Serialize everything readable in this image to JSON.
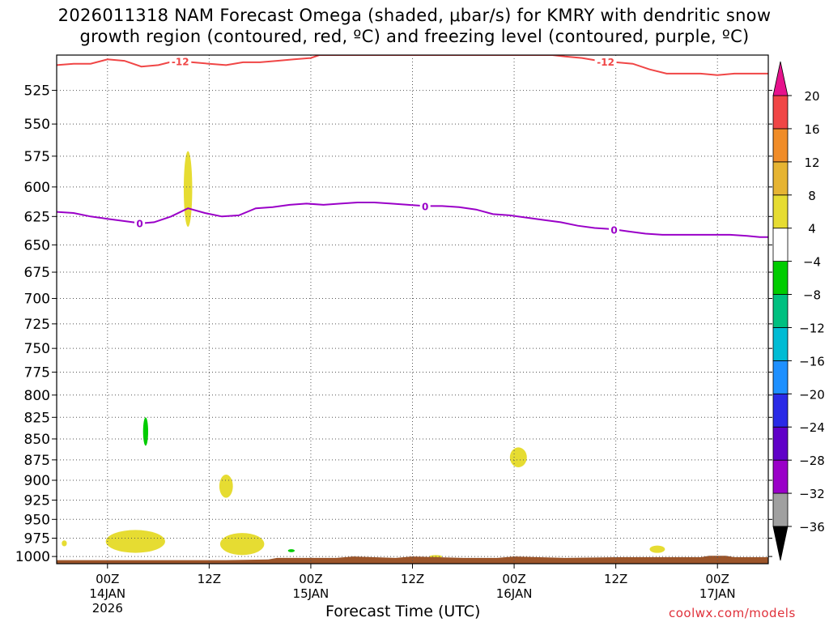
{
  "header": {
    "title_line1": "2026011318 NAM Forecast Omega (shaded, μbar/s) for KMRY with dendritic snow",
    "title_line2": "growth region (contoured, red, ºC) and freezing level (contoured, purple, ºC)"
  },
  "footer": {
    "xlabel": "Forecast Time (UTC)",
    "credit": "coolwx.com/models"
  },
  "chart_data": {
    "type": "heatmap",
    "title": "2026011318 NAM Forecast Omega (shaded, μbar/s) for KMRY with dendritic snow growth region (contoured, red, ºC) and freezing level (contoured, purple, ºC)",
    "xlabel": "Forecast Time (UTC)",
    "ylabel": "",
    "x_unit": "hours since 2026-01-13 18Z",
    "xlim": [
      0,
      84
    ],
    "ylim_hpa": [
      500,
      1010
    ],
    "y_scale": "log-pressure, inverted",
    "grid": true,
    "y_ticks": [
      525,
      550,
      575,
      600,
      625,
      650,
      675,
      700,
      725,
      750,
      775,
      800,
      825,
      850,
      875,
      900,
      925,
      950,
      975,
      1000
    ],
    "x_ticks": [
      {
        "x": 6,
        "lines": [
          "00Z",
          "14JAN",
          "2026"
        ]
      },
      {
        "x": 18,
        "lines": [
          "12Z"
        ]
      },
      {
        "x": 30,
        "lines": [
          "00Z",
          "15JAN"
        ]
      },
      {
        "x": 42,
        "lines": [
          "12Z"
        ]
      },
      {
        "x": 54,
        "lines": [
          "00Z",
          "16JAN"
        ]
      },
      {
        "x": 66,
        "lines": [
          "12Z"
        ]
      },
      {
        "x": 78,
        "lines": [
          "00Z",
          "17JAN"
        ]
      }
    ],
    "colorbar": {
      "levels": [
        -36,
        -32,
        -28,
        -24,
        -20,
        -16,
        -12,
        -8,
        -4,
        4,
        8,
        12,
        16,
        20
      ],
      "colors": [
        "#a0a0a0",
        "#9a00c8",
        "#6000c8",
        "#2a2ae6",
        "#1e90ff",
        "#00bcd4",
        "#00c080",
        "#00cc00",
        "#ffffff",
        "#e6dc32",
        "#e6b432",
        "#f08c28",
        "#f04646"
      ],
      "under_color": "#000000",
      "over_color": "#e6128c"
    },
    "series": [
      {
        "contour_label": "0",
        "color": "#9a00c8",
        "x": [
          0,
          2,
          4,
          6,
          8,
          10,
          11.5,
          13.5,
          15.5,
          17.5,
          19.5,
          21.5,
          23.5,
          25.5,
          27.5,
          29.5,
          31.5,
          33.5,
          35.5,
          37.5,
          39.5,
          41.5,
          43.5,
          45.5,
          47.5,
          49.5,
          51.5,
          53.5,
          55.5,
          57.5,
          59.5,
          61.5,
          63.5,
          65.5,
          67.5,
          69.5,
          71.5,
          73.5,
          75.5,
          77.5,
          79.5,
          81.5,
          83,
          84
        ],
        "y": [
          621,
          622,
          625,
          627,
          629,
          631,
          630,
          625,
          618,
          622,
          625,
          624,
          618,
          617,
          615,
          614,
          615,
          614,
          613,
          613,
          614,
          615,
          616,
          616,
          617,
          619,
          623,
          624,
          626,
          628,
          630,
          633,
          635,
          636,
          638,
          640,
          641,
          641,
          641,
          641,
          641,
          642,
          643,
          643
        ]
      },
      {
        "contour_label": "-12",
        "color": "#f04646",
        "x": [
          0,
          2,
          4,
          6,
          8,
          10,
          12,
          14,
          16,
          18,
          20,
          22,
          24,
          26,
          28,
          30,
          31,
          58.5,
          60,
          62,
          64,
          66,
          68,
          70,
          72,
          74,
          76,
          78,
          80,
          82,
          84
        ],
        "y": [
          507,
          506,
          506,
          503,
          504,
          508,
          507,
          504,
          505,
          506,
          507,
          505,
          505,
          504,
          503,
          502,
          500,
          500,
          501,
          502,
          504,
          505,
          506,
          510,
          513,
          513,
          513,
          514,
          513,
          513,
          513
        ]
      }
    ],
    "shaded_regions": [
      {
        "value_range": [
          4,
          8
        ],
        "color": "#e6dc32",
        "x": [
          15.0,
          16.0
        ],
        "p": [
          571,
          634
        ]
      },
      {
        "value_range": [
          -12,
          -8
        ],
        "color": "#00cc00",
        "x": [
          10.2,
          10.8
        ],
        "p": [
          825,
          858
        ]
      },
      {
        "value_range": [
          4,
          8
        ],
        "color": "#e6dc32",
        "x": [
          19.2,
          20.8
        ],
        "p": [
          893,
          922
        ]
      },
      {
        "value_range": [
          4,
          8
        ],
        "color": "#e6dc32",
        "x": [
          53.5,
          55.5
        ],
        "p": [
          860,
          884
        ]
      },
      {
        "value_range": [
          4,
          8
        ],
        "color": "#e6dc32",
        "x": [
          5.8,
          12.8
        ],
        "p": [
          964,
          995
        ]
      },
      {
        "value_range": [
          4,
          8
        ],
        "color": "#e6dc32",
        "x": [
          19.3,
          24.5
        ],
        "p": [
          968,
          998
        ]
      },
      {
        "value_range": [
          4,
          8
        ],
        "color": "#e6dc32",
        "x": [
          0.6,
          1.2
        ],
        "p": [
          978,
          986
        ]
      },
      {
        "value_range": [
          4,
          8
        ],
        "color": "#e6dc32",
        "x": [
          70,
          71.8
        ],
        "p": [
          985,
          995
        ]
      },
      {
        "value_range": [
          4,
          8
        ],
        "color": "#e6dc32",
        "x": [
          44,
          45.5
        ],
        "p": [
          998,
          1002
        ]
      },
      {
        "value_range": [
          -12,
          -8
        ],
        "color": "#00cc00",
        "x": [
          27.3,
          28.1
        ],
        "p": [
          990,
          994
        ]
      }
    ],
    "terrain": {
      "color": "#9c552a",
      "x": [
        0,
        6,
        12,
        20,
        25,
        26,
        33,
        35,
        40,
        42,
        48,
        52,
        54,
        60,
        66,
        72,
        76,
        77,
        79,
        80,
        84
      ],
      "p": [
        1005,
        1005,
        1005,
        1005,
        1004,
        1002,
        1002,
        1000,
        1002,
        1000,
        1002,
        1002,
        1000,
        1002,
        1001,
        1001,
        1001,
        999,
        999,
        1001,
        1001
      ]
    }
  }
}
